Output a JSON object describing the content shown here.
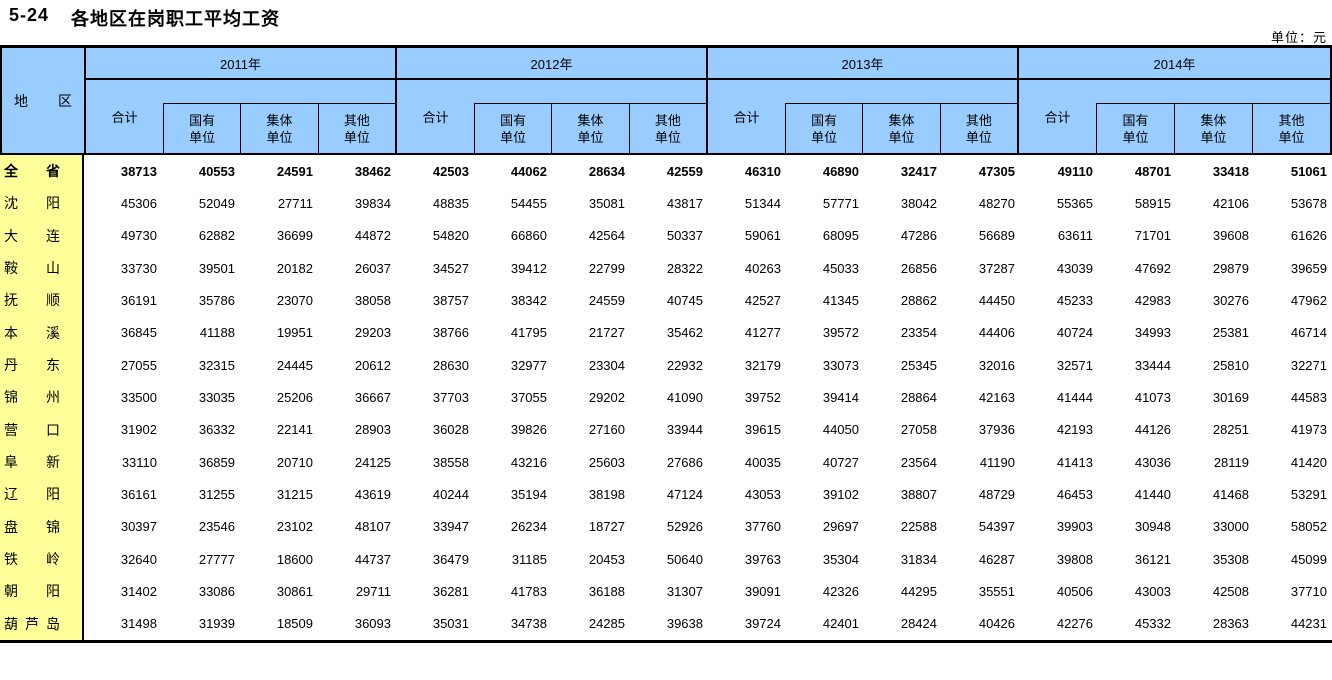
{
  "title": {
    "number": "5-24",
    "text": "各地区在岗职工平均工资"
  },
  "unit_label": "单位：元",
  "colors": {
    "header_bg": "#99CCFF",
    "region_bg": "#FFFF99",
    "border": "#000000",
    "text": "#000000"
  },
  "table": {
    "region_header": "地区",
    "years": [
      {
        "label": "2011年",
        "total_label": "合计",
        "sub_labels": [
          [
            "国有",
            "单位"
          ],
          [
            "集体",
            "单位"
          ],
          [
            "其他",
            "单位"
          ]
        ]
      },
      {
        "label": "2012年",
        "total_label": "合计",
        "sub_labels": [
          [
            "国有",
            "单位"
          ],
          [
            "集体",
            "单位"
          ],
          [
            "其他",
            "单位"
          ]
        ]
      },
      {
        "label": "2013年",
        "total_label": "合计",
        "sub_labels": [
          [
            "国有",
            "单位"
          ],
          [
            "集体",
            "单位"
          ],
          [
            "其他",
            "单位"
          ]
        ]
      },
      {
        "label": "2014年",
        "total_label": "合计",
        "sub_labels": [
          [
            "国有",
            "单位"
          ],
          [
            "集体",
            "单位"
          ],
          [
            "其他",
            "单位"
          ]
        ]
      }
    ],
    "rows": [
      {
        "region": "全省",
        "bold": true,
        "values": [
          38713,
          40553,
          24591,
          38462,
          42503,
          44062,
          28634,
          42559,
          46310,
          46890,
          32417,
          47305,
          49110,
          48701,
          33418,
          51061
        ]
      },
      {
        "region": "沈阳",
        "bold": false,
        "values": [
          45306,
          52049,
          27711,
          39834,
          48835,
          54455,
          35081,
          43817,
          51344,
          57771,
          38042,
          48270,
          55365,
          58915,
          42106,
          53678
        ]
      },
      {
        "region": "大连",
        "bold": false,
        "values": [
          49730,
          62882,
          36699,
          44872,
          54820,
          66860,
          42564,
          50337,
          59061,
          68095,
          47286,
          56689,
          63611,
          71701,
          39608,
          61626
        ]
      },
      {
        "region": "鞍山",
        "bold": false,
        "values": [
          33730,
          39501,
          20182,
          26037,
          34527,
          39412,
          22799,
          28322,
          40263,
          45033,
          26856,
          37287,
          43039,
          47692,
          29879,
          39659
        ]
      },
      {
        "region": "抚顺",
        "bold": false,
        "values": [
          36191,
          35786,
          23070,
          38058,
          38757,
          38342,
          24559,
          40745,
          42527,
          41345,
          28862,
          44450,
          45233,
          42983,
          30276,
          47962
        ]
      },
      {
        "region": "本溪",
        "bold": false,
        "values": [
          36845,
          41188,
          19951,
          29203,
          38766,
          41795,
          21727,
          35462,
          41277,
          39572,
          23354,
          44406,
          40724,
          34993,
          25381,
          46714
        ]
      },
      {
        "region": "丹东",
        "bold": false,
        "values": [
          27055,
          32315,
          24445,
          20612,
          28630,
          32977,
          23304,
          22932,
          32179,
          33073,
          25345,
          32016,
          32571,
          33444,
          25810,
          32271
        ]
      },
      {
        "region": "锦州",
        "bold": false,
        "values": [
          33500,
          33035,
          25206,
          36667,
          37703,
          37055,
          29202,
          41090,
          39752,
          39414,
          28864,
          42163,
          41444,
          41073,
          30169,
          44583
        ]
      },
      {
        "region": "营口",
        "bold": false,
        "values": [
          31902,
          36332,
          22141,
          28903,
          36028,
          39826,
          27160,
          33944,
          39615,
          44050,
          27058,
          37936,
          42193,
          44126,
          28251,
          41973
        ]
      },
      {
        "region": "阜新",
        "bold": false,
        "values": [
          33110,
          36859,
          20710,
          24125,
          38558,
          43216,
          25603,
          27686,
          40035,
          40727,
          23564,
          41190,
          41413,
          43036,
          28119,
          41420
        ]
      },
      {
        "region": "辽阳",
        "bold": false,
        "values": [
          36161,
          31255,
          31215,
          43619,
          40244,
          35194,
          38198,
          47124,
          43053,
          39102,
          38807,
          48729,
          46453,
          41440,
          41468,
          53291
        ]
      },
      {
        "region": "盘锦",
        "bold": false,
        "values": [
          30397,
          23546,
          23102,
          48107,
          33947,
          26234,
          18727,
          52926,
          37760,
          29697,
          22588,
          54397,
          39903,
          30948,
          33000,
          58052
        ]
      },
      {
        "region": "铁岭",
        "bold": false,
        "values": [
          32640,
          27777,
          18600,
          44737,
          36479,
          31185,
          20453,
          50640,
          39763,
          35304,
          31834,
          46287,
          39808,
          36121,
          35308,
          45099
        ]
      },
      {
        "region": "朝阳",
        "bold": false,
        "values": [
          31402,
          33086,
          30861,
          29711,
          36281,
          41783,
          36188,
          31307,
          39091,
          42326,
          44295,
          35551,
          40506,
          43003,
          42508,
          37710
        ]
      },
      {
        "region": "葫芦岛",
        "bold": false,
        "values": [
          31498,
          31939,
          18509,
          36093,
          35031,
          34738,
          24285,
          39638,
          39724,
          42401,
          28424,
          40426,
          42276,
          45332,
          28363,
          44231
        ]
      }
    ]
  }
}
